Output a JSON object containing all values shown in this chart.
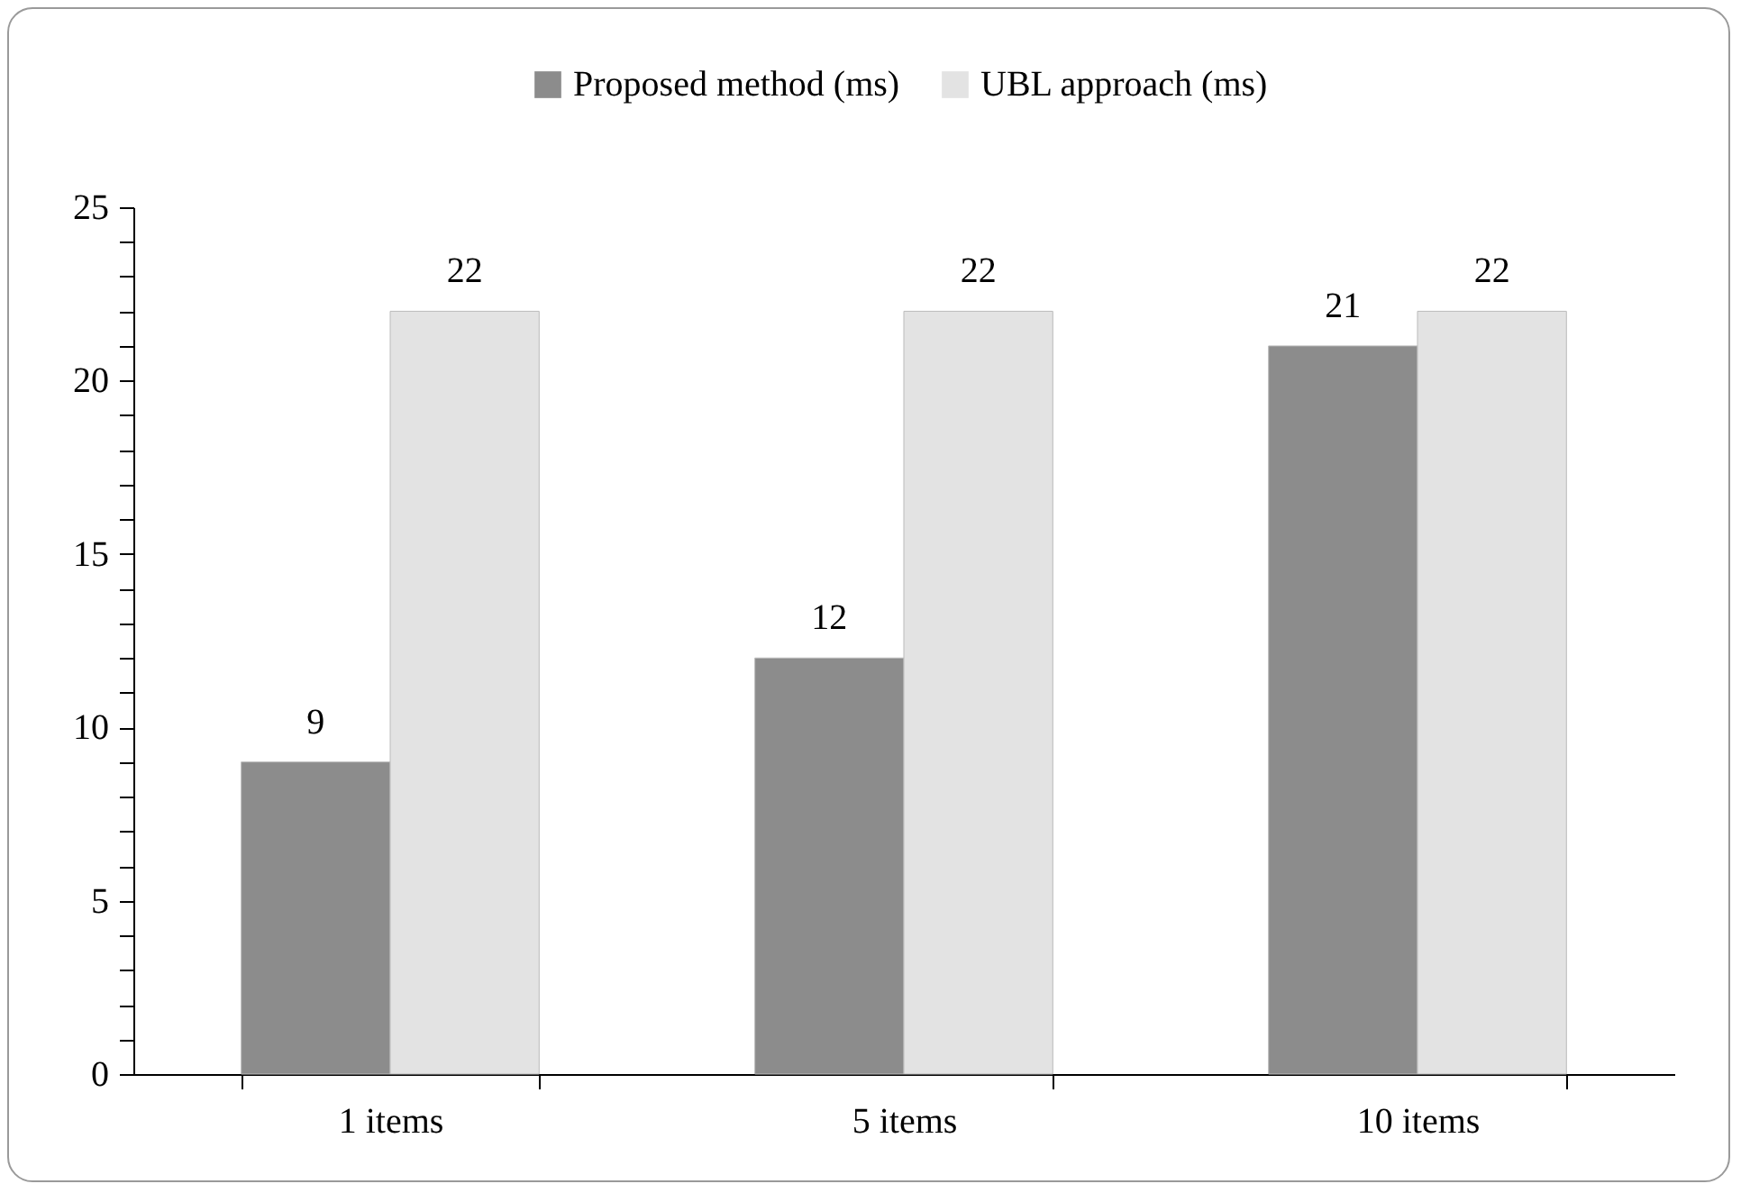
{
  "chart_data": {
    "type": "bar",
    "categories": [
      "1 items",
      "5 items",
      "10 items"
    ],
    "series": [
      {
        "name": "Proposed method (ms)",
        "color": "#8c8c8c",
        "values": [
          9,
          12,
          21
        ]
      },
      {
        "name": "UBL approach (ms)",
        "color": "#e3e3e3",
        "values": [
          22,
          22,
          22
        ]
      }
    ],
    "ylim": [
      0,
      25
    ],
    "yticks": [
      0,
      {
        "value": 1,
        "label": null
      },
      {
        "value": 2,
        "label": null
      },
      {
        "value": 3,
        "label": null
      },
      {
        "value": 4,
        "label": null
      },
      5,
      {
        "value": 6,
        "label": null
      },
      {
        "value": 7,
        "label": null
      },
      {
        "value": 8,
        "label": null
      },
      {
        "value": 9,
        "label": null
      },
      10,
      {
        "value": 11,
        "label": null
      },
      {
        "value": 12,
        "label": null
      },
      {
        "value": 13,
        "label": null
      },
      {
        "value": 14,
        "label": null
      },
      15,
      {
        "value": 16,
        "label": null
      },
      {
        "value": 17,
        "label": null
      },
      {
        "value": 18,
        "label": null
      },
      {
        "value": 19,
        "label": null
      },
      20,
      {
        "value": 21,
        "label": null
      },
      {
        "value": 22,
        "label": null
      },
      {
        "value": 23,
        "label": null
      },
      {
        "value": 24,
        "label": null
      },
      25
    ],
    "grid": false,
    "legend": "top",
    "data_labels": true
  }
}
